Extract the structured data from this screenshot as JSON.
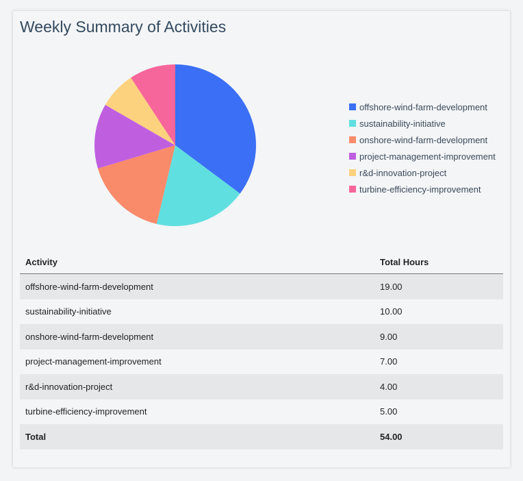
{
  "title": "Weekly Summary of Activities",
  "chart_data": {
    "type": "pie",
    "categories": [
      "offshore-wind-farm-development",
      "sustainability-initiative",
      "onshore-wind-farm-development",
      "project-management-improvement",
      "r&d-innovation-project",
      "turbine-efficiency-improvement"
    ],
    "values": [
      19,
      10,
      9,
      7,
      4,
      5
    ],
    "colors": [
      "#3b6ff5",
      "#60dfe0",
      "#f98b6b",
      "#bf5fe0",
      "#fdd27e",
      "#f7669b"
    ],
    "legend_position": "right"
  },
  "table": {
    "headers": [
      "Activity",
      "Total Hours"
    ],
    "rows": [
      [
        "offshore-wind-farm-development",
        "19.00"
      ],
      [
        "sustainability-initiative",
        "10.00"
      ],
      [
        "onshore-wind-farm-development",
        "9.00"
      ],
      [
        "project-management-improvement",
        "7.00"
      ],
      [
        "r&d-innovation-project",
        "4.00"
      ],
      [
        "turbine-efficiency-improvement",
        "5.00"
      ]
    ],
    "total": [
      "Total",
      "54.00"
    ]
  }
}
